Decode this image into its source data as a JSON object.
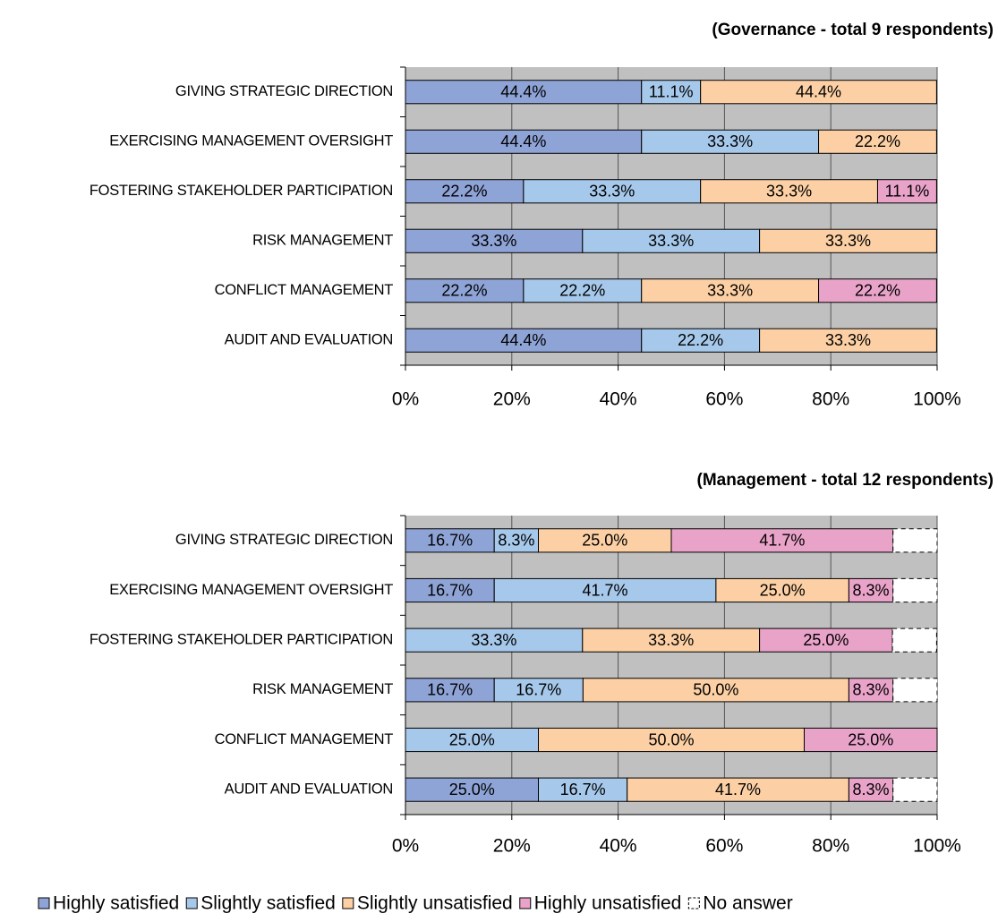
{
  "chart_data": [
    {
      "type": "stacked_bar_horizontal",
      "title": "(Governance - total 9 respondents)",
      "categories": [
        "GIVING STRATEGIC DIRECTION",
        "EXERCISING MANAGEMENT OVERSIGHT",
        "FOSTERING STAKEHOLDER PARTICIPATION",
        "RISK MANAGEMENT",
        "CONFLICT MANAGEMENT",
        "AUDIT AND EVALUATION"
      ],
      "series": [
        {
          "name": "Highly satisfied",
          "color": "#8ea3d6",
          "values": [
            44.4,
            44.4,
            22.2,
            33.3,
            22.2,
            44.4
          ],
          "value_labels": [
            "44.4%",
            "44.4%",
            "22.2%",
            "33.3%",
            "22.2%",
            "44.4%"
          ]
        },
        {
          "name": "Slightly satisfied",
          "color": "#a6c8ea",
          "values": [
            11.1,
            33.3,
            33.3,
            33.3,
            22.2,
            22.2
          ],
          "value_labels": [
            "11.1%",
            "33.3%",
            "33.3%",
            "33.3%",
            "22.2%",
            "22.2%"
          ]
        },
        {
          "name": "Slightly unsatisfied",
          "color": "#fcd0a4",
          "values": [
            44.4,
            22.2,
            33.3,
            33.3,
            33.3,
            33.3
          ],
          "value_labels": [
            "44.4%",
            "22.2%",
            "33.3%",
            "33.3%",
            "33.3%",
            "33.3%"
          ]
        },
        {
          "name": "Highly unsatisfied",
          "color": "#e9a3c9",
          "values": [
            null,
            null,
            11.1,
            null,
            22.2,
            null
          ],
          "value_labels": [
            null,
            null,
            "11.1%",
            null,
            "22.2%",
            null
          ]
        }
      ],
      "xlim": [
        0,
        100
      ],
      "xticks": [
        {
          "value": 0,
          "label": "0%"
        },
        {
          "value": 20,
          "label": "20%"
        },
        {
          "value": 40,
          "label": "40%"
        },
        {
          "value": 60,
          "label": "60%"
        },
        {
          "value": 80,
          "label": "80%"
        },
        {
          "value": 100,
          "label": "100%"
        }
      ],
      "grid": true
    },
    {
      "type": "stacked_bar_horizontal",
      "title": "(Management - total 12 respondents)",
      "categories": [
        "GIVING STRATEGIC DIRECTION",
        "EXERCISING MANAGEMENT OVERSIGHT",
        "FOSTERING STAKEHOLDER PARTICIPATION",
        "RISK MANAGEMENT",
        "CONFLICT MANAGEMENT",
        "AUDIT AND EVALUATION"
      ],
      "series": [
        {
          "name": "Highly satisfied",
          "color": "#8ea3d6",
          "values": [
            16.7,
            16.7,
            null,
            16.7,
            null,
            25.0
          ],
          "value_labels": [
            "16.7%",
            "16.7%",
            null,
            "16.7%",
            null,
            "25.0%"
          ]
        },
        {
          "name": "Slightly satisfied",
          "color": "#a6c8ea",
          "values": [
            8.3,
            41.7,
            33.3,
            16.7,
            25.0,
            16.7
          ],
          "value_labels": [
            "8.3%",
            "41.7%",
            "33.3%",
            "16.7%",
            "25.0%",
            "16.7%"
          ]
        },
        {
          "name": "Slightly unsatisfied",
          "color": "#fcd0a4",
          "values": [
            25.0,
            25.0,
            33.3,
            50.0,
            50.0,
            41.7
          ],
          "value_labels": [
            "25.0%",
            "25.0%",
            "33.3%",
            "50.0%",
            "50.0%",
            "41.7%"
          ]
        },
        {
          "name": "Highly unsatisfied",
          "color": "#e9a3c9",
          "values": [
            41.7,
            8.3,
            25.0,
            8.3,
            25.0,
            8.3
          ],
          "value_labels": [
            "41.7%",
            "8.3%",
            "25.0%",
            "8.3%",
            "25.0%",
            "8.3%"
          ]
        },
        {
          "name": "No answer",
          "color": "#ffffff",
          "style": "dashed",
          "values": [
            8.3,
            8.3,
            8.3,
            8.3,
            null,
            8.3
          ]
        }
      ],
      "xlim": [
        0,
        100
      ],
      "xticks": [
        {
          "value": 0,
          "label": "0%"
        },
        {
          "value": 20,
          "label": "20%"
        },
        {
          "value": 40,
          "label": "40%"
        },
        {
          "value": 60,
          "label": "60%"
        },
        {
          "value": 80,
          "label": "80%"
        },
        {
          "value": 100,
          "label": "100%"
        }
      ],
      "grid": true
    }
  ]
}
